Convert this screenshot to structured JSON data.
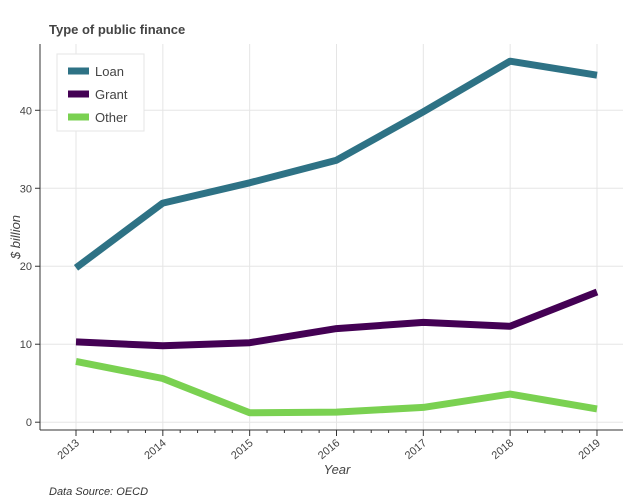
{
  "chart_data": {
    "type": "line",
    "title": "Type of public finance",
    "xlabel": "Year",
    "ylabel": "$ billion",
    "x": [
      "2013",
      "2014",
      "2015",
      "2016",
      "2017",
      "2018",
      "2019"
    ],
    "yticks": [
      0,
      10,
      20,
      30,
      40
    ],
    "ylim": [
      -1,
      48.5
    ],
    "grid": true,
    "legend_position": "top-left",
    "series": [
      {
        "name": "Loan",
        "color": "#2e7285",
        "values": [
          19.8,
          28.1,
          30.7,
          33.6,
          39.8,
          46.3,
          44.5
        ]
      },
      {
        "name": "Grant",
        "color": "#440154",
        "values": [
          10.3,
          9.8,
          10.2,
          12.0,
          12.8,
          12.3,
          16.7
        ]
      },
      {
        "name": "Other",
        "color": "#7ad151",
        "values": [
          7.8,
          5.6,
          1.2,
          1.3,
          1.9,
          3.6,
          1.7
        ]
      }
    ]
  },
  "footer": {
    "source": "Data Source: OECD"
  }
}
